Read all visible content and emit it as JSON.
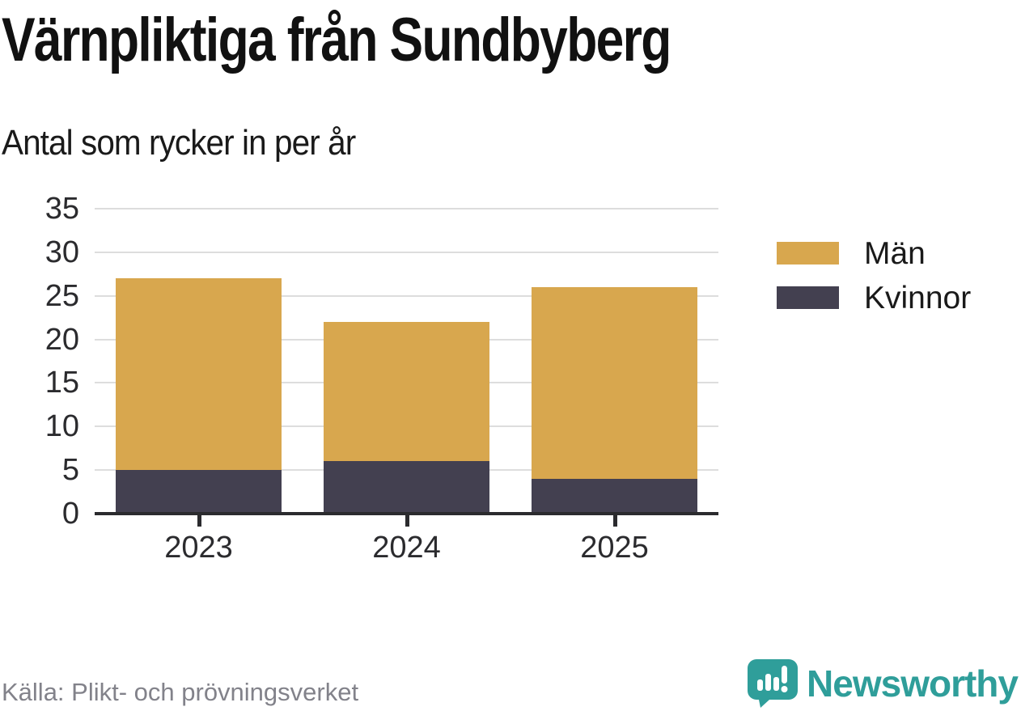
{
  "chart_data": {
    "type": "bar",
    "stacked": true,
    "title": "Värnpliktiga från Sundbyberg",
    "subtitle": "Antal som rycker in per år",
    "categories": [
      "2023",
      "2024",
      "2025"
    ],
    "series": [
      {
        "name": "Män",
        "color": "#d8a74e",
        "values": [
          22,
          16,
          22
        ]
      },
      {
        "name": "Kvinnor",
        "color": "#434050",
        "values": [
          5,
          6,
          4
        ]
      }
    ],
    "stack_bottom_to_top": [
      "Kvinnor",
      "Män"
    ],
    "totals": [
      27,
      22,
      26
    ],
    "xlabel": "",
    "ylabel": "",
    "ylim": [
      0,
      35
    ],
    "yticks": [
      0,
      5,
      10,
      15,
      20,
      25,
      30,
      35
    ],
    "grid": "horizontal-light",
    "legend_position": "right",
    "colors": {
      "grid": "#dddddd",
      "axis": "#2b2b2e",
      "tick_label": "#2b2b2e",
      "title_text": "#111111"
    }
  },
  "footer": {
    "source": "Källa: Plikt- och prövningsverket",
    "brand": "Newsworthy",
    "brand_color": "#2f9e9a",
    "source_color": "#82828a"
  }
}
